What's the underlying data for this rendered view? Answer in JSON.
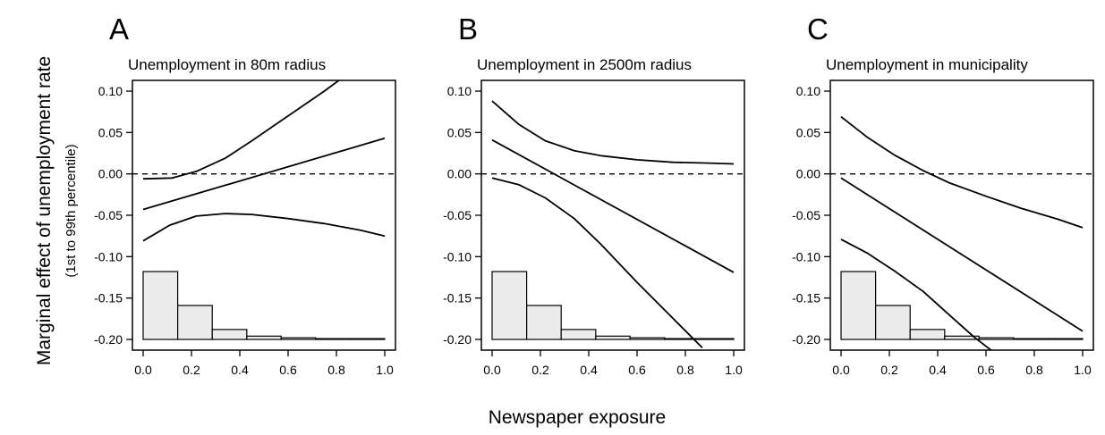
{
  "figure": {
    "ylabel": "Marginal effect of unemployment rate",
    "ylabel_sub": "(1st to 99th percentile)",
    "xlabel": "Newspaper exposure"
  },
  "chart_data": [
    {
      "type": "line",
      "letter": "A",
      "title": "Unemployment in 80m radius",
      "xlim": [
        0,
        1
      ],
      "ylim": [
        -0.2,
        0.1
      ],
      "xticks": [
        "0.0",
        "0.2",
        "0.4",
        "0.6",
        "0.8",
        "1.0"
      ],
      "yticks": [
        "0.10",
        "0.05",
        "0.00",
        "-0.05",
        "-0.10",
        "-0.15",
        "-0.20"
      ],
      "reference_line": 0,
      "series": [
        {
          "x": [
            0,
            1
          ],
          "y": [
            -0.043,
            0.043
          ]
        },
        {
          "x": [
            0,
            0.12,
            0.22,
            0.34,
            0.45,
            0.6,
            0.75,
            0.88
          ],
          "y": [
            -0.006,
            -0.005,
            0.003,
            0.019,
            0.04,
            0.07,
            0.1,
            0.128
          ]
        },
        {
          "x": [
            0,
            0.11,
            0.22,
            0.34,
            0.45,
            0.6,
            0.75,
            0.9,
            1.0
          ],
          "y": [
            -0.081,
            -0.062,
            -0.051,
            -0.048,
            -0.049,
            -0.054,
            -0.06,
            -0.068,
            -0.075
          ]
        }
      ],
      "histogram": {
        "bins": [
          0,
          0.143,
          0.286,
          0.429,
          0.571,
          0.714,
          0.857,
          1.0
        ],
        "values": [
          0.082,
          0.041,
          0.012,
          0.004,
          0.002,
          0.001,
          0.001
        ]
      }
    },
    {
      "type": "line",
      "letter": "B",
      "title": "Unemployment in 2500m radius",
      "xlim": [
        0,
        1
      ],
      "ylim": [
        -0.2,
        0.1
      ],
      "xticks": [
        "0.0",
        "0.2",
        "0.4",
        "0.6",
        "0.8",
        "1.0"
      ],
      "yticks": [
        "0.10",
        "0.05",
        "0.00",
        "-0.05",
        "-0.10",
        "-0.15",
        "-0.20"
      ],
      "reference_line": 0,
      "series": [
        {
          "x": [
            0,
            1
          ],
          "y": [
            0.041,
            -0.119
          ]
        },
        {
          "x": [
            0,
            0.11,
            0.22,
            0.34,
            0.45,
            0.6,
            0.75,
            0.9,
            1.0
          ],
          "y": [
            0.088,
            0.06,
            0.04,
            0.028,
            0.022,
            0.017,
            0.014,
            0.013,
            0.012
          ]
        },
        {
          "x": [
            0,
            0.11,
            0.22,
            0.34,
            0.45,
            0.6,
            0.75,
            0.87
          ],
          "y": [
            -0.005,
            -0.013,
            -0.029,
            -0.054,
            -0.085,
            -0.131,
            -0.175,
            -0.21
          ]
        }
      ],
      "histogram": {
        "bins": [
          0,
          0.143,
          0.286,
          0.429,
          0.571,
          0.714,
          0.857,
          1.0
        ],
        "values": [
          0.082,
          0.041,
          0.012,
          0.004,
          0.002,
          0.001,
          0.001
        ]
      }
    },
    {
      "type": "line",
      "letter": "C",
      "title": "Unemployment in municipality",
      "xlim": [
        0,
        1
      ],
      "ylim": [
        -0.2,
        0.1
      ],
      "xticks": [
        "0.0",
        "0.2",
        "0.4",
        "0.6",
        "0.8",
        "1.0"
      ],
      "yticks": [
        "0.10",
        "0.05",
        "0.00",
        "-0.05",
        "-0.10",
        "-0.15",
        "-0.20"
      ],
      "reference_line": 0,
      "series": [
        {
          "x": [
            0,
            1
          ],
          "y": [
            -0.005,
            -0.19
          ]
        },
        {
          "x": [
            0,
            0.11,
            0.22,
            0.34,
            0.45,
            0.6,
            0.75,
            0.9,
            1.0
          ],
          "y": [
            0.069,
            0.044,
            0.023,
            0.004,
            -0.011,
            -0.027,
            -0.042,
            -0.055,
            -0.065
          ]
        },
        {
          "x": [
            0,
            0.11,
            0.22,
            0.34,
            0.45,
            0.55,
            0.63
          ],
          "y": [
            -0.079,
            -0.096,
            -0.117,
            -0.142,
            -0.171,
            -0.197,
            -0.215
          ]
        }
      ],
      "histogram": {
        "bins": [
          0,
          0.143,
          0.286,
          0.429,
          0.571,
          0.714,
          0.857,
          1.0
        ],
        "values": [
          0.082,
          0.041,
          0.012,
          0.004,
          0.002,
          0.001,
          0.001
        ]
      }
    }
  ]
}
